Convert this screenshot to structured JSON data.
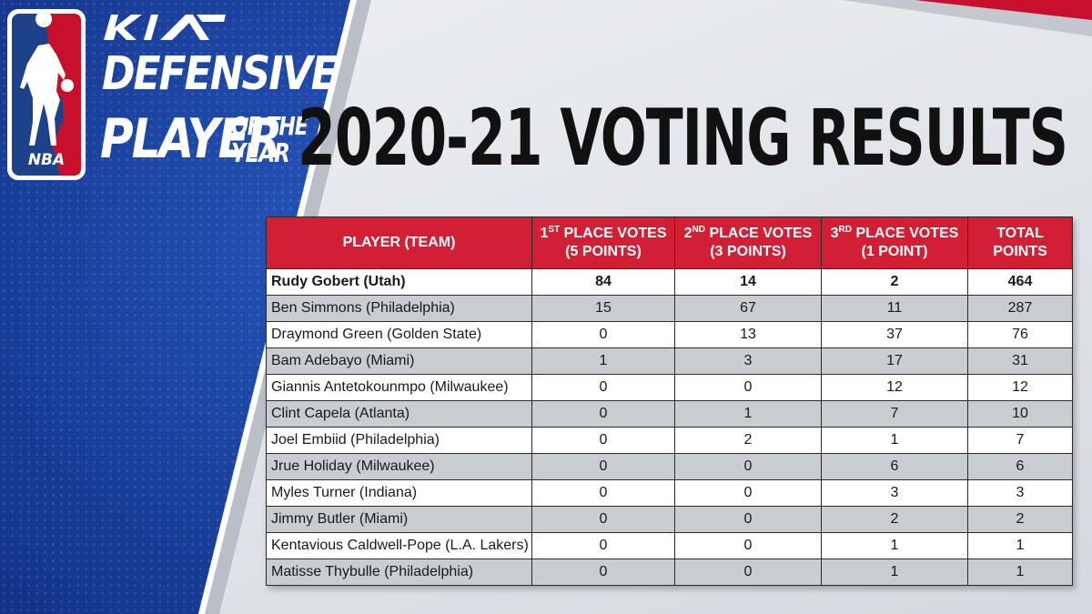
{
  "brand": {
    "league_logo_label": "NBA",
    "league_logo_icon": "nba-logo-icon",
    "sponsor_icon": "kia-logo-icon",
    "colors": {
      "blue": "#14348a",
      "red": "#d31f35",
      "row_grey": "#c9ccd1"
    }
  },
  "award": {
    "line1": "DEFENSIVE",
    "line2": "PLAYER",
    "line3a": "OF THE",
    "line3b": "YEAR"
  },
  "heading": "2020-21 VOTING RESULTS",
  "table": {
    "headers": [
      {
        "main": "PLAYER (TEAM)"
      },
      {
        "num": "1",
        "sup": "ST",
        "main": " PLACE VOTES",
        "sub": "(5 POINTS)"
      },
      {
        "num": "2",
        "sup": "ND",
        "main": " PLACE VOTES",
        "sub": "(3 POINTS)"
      },
      {
        "num": "3",
        "sup": "RD",
        "main": " PLACE VOTES",
        "sub": "(1 POINT)"
      },
      {
        "main": "TOTAL",
        "sub": "POINTS"
      }
    ],
    "rows": [
      {
        "player": "Rudy Gobert (Utah)",
        "first": "84",
        "second": "14",
        "third": "2",
        "total": "464"
      },
      {
        "player": "Ben Simmons (Philadelphia)",
        "first": "15",
        "second": "67",
        "third": "11",
        "total": "287"
      },
      {
        "player": "Draymond Green (Golden State)",
        "first": "0",
        "second": "13",
        "third": "37",
        "total": "76"
      },
      {
        "player": "Bam Adebayo (Miami)",
        "first": "1",
        "second": "3",
        "third": "17",
        "total": "31"
      },
      {
        "player": "Giannis Antetokounmpo (Milwaukee)",
        "first": "0",
        "second": "0",
        "third": "12",
        "total": "12"
      },
      {
        "player": "Clint Capela (Atlanta)",
        "first": "0",
        "second": "1",
        "third": "7",
        "total": "10"
      },
      {
        "player": "Joel Embiid (Philadelphia)",
        "first": "0",
        "second": "2",
        "third": "1",
        "total": "7"
      },
      {
        "player": "Jrue Holiday (Milwaukee)",
        "first": "0",
        "second": "0",
        "third": "6",
        "total": "6"
      },
      {
        "player": "Myles Turner (Indiana)",
        "first": "0",
        "second": "0",
        "third": "3",
        "total": "3"
      },
      {
        "player": "Jimmy Butler (Miami)",
        "first": "0",
        "second": "0",
        "third": "2",
        "total": "2"
      },
      {
        "player": "Kentavious Caldwell-Pope (L.A. Lakers)",
        "first": "0",
        "second": "0",
        "third": "1",
        "total": "1"
      },
      {
        "player": "Matisse Thybulle (Philadelphia)",
        "first": "0",
        "second": "0",
        "third": "1",
        "total": "1"
      }
    ]
  }
}
